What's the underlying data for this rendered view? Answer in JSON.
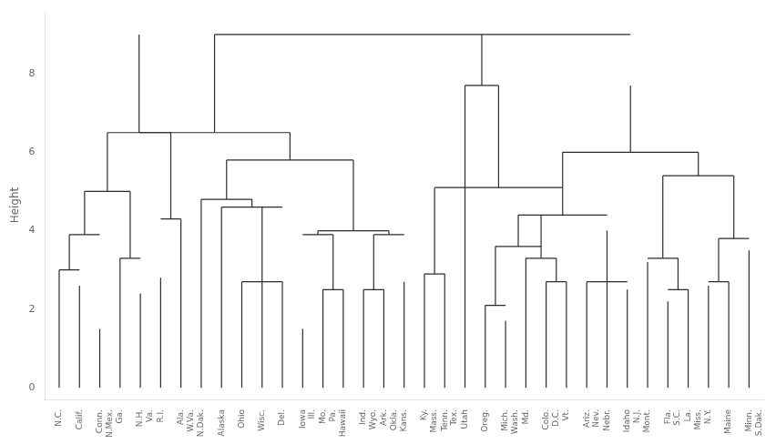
{
  "chart_data": {
    "type": "dendrogram",
    "ylabel": "Height",
    "ylim": [
      -0.3,
      9.6
    ],
    "yticks": [
      0,
      2,
      4,
      6,
      8
    ],
    "grid": false,
    "color": "#2b2b2b",
    "categories": [
      "N.C.",
      "Calif.",
      "Conn.\nN.Mex.",
      "Ga.",
      "N.H.\nVa.",
      "R.I.",
      "Ala.\nW.Va.",
      "N.Dak.",
      "Alaska",
      "Ohio",
      "Wisc.",
      "Del.",
      "Iowa\nIll.",
      "Mo.\nPa.",
      "Hawaii",
      "Ind.\nWyo.",
      "Ark.\nOkla.",
      "Kans.",
      "Ky.\nMass.",
      "Tenn.\nTex.",
      "Utah",
      "Oreg.",
      "Mich.\nWash.",
      "Md.",
      "Colo.\nD.C.",
      "Vt.",
      "Ariz.\nNev.",
      "Nebr.",
      "Idaho\nN.J.",
      "Mont.",
      "Fla.\nS.C.",
      "La.\nMiss.",
      "N.Y.",
      "Maine",
      "Minn.\nS.Dak."
    ],
    "segments": [
      [
        0,
        0,
        0,
        3.0
      ],
      [
        1,
        1,
        0,
        2.6
      ],
      [
        0,
        1,
        3.0,
        3.0
      ],
      [
        0.5,
        0.5,
        3.0,
        3.9
      ],
      [
        2,
        2,
        0,
        1.5
      ],
      [
        0.5,
        2,
        3.9,
        3.9
      ],
      [
        1.25,
        1.25,
        3.9,
        5.0
      ],
      [
        3,
        3,
        0,
        3.3
      ],
      [
        4,
        4,
        0,
        2.4
      ],
      [
        3,
        4,
        3.3,
        3.3
      ],
      [
        3.5,
        3.5,
        3.3,
        5.0
      ],
      [
        1.25,
        3.5,
        5.0,
        5.0
      ],
      [
        2.375,
        2.375,
        5.0,
        6.5
      ],
      [
        5,
        5,
        0,
        2.8
      ],
      [
        6,
        6,
        0,
        4.3
      ],
      [
        5,
        6,
        4.3,
        4.3
      ],
      [
        5.5,
        5.5,
        4.3,
        6.5
      ],
      [
        2.375,
        5.5,
        6.5,
        6.5
      ],
      [
        3.9375,
        3.9375,
        6.5,
        9.0
      ],
      [
        7,
        7,
        0,
        4.8
      ],
      [
        8,
        8,
        0,
        4.6
      ],
      [
        9,
        9,
        0,
        2.7
      ],
      [
        10,
        10,
        0,
        2.7
      ],
      [
        11,
        11,
        0,
        2.7
      ],
      [
        9,
        11,
        2.7,
        2.7
      ],
      [
        10,
        10,
        2.7,
        4.6
      ],
      [
        8,
        11,
        4.6,
        4.6
      ],
      [
        9.5,
        9.5,
        4.6,
        4.8
      ],
      [
        7,
        9.5,
        4.8,
        4.8
      ],
      [
        8.25,
        8.25,
        4.8,
        5.8
      ],
      [
        12,
        12,
        0,
        1.5
      ],
      [
        13,
        13,
        0,
        2.5
      ],
      [
        14,
        14,
        0,
        2.5
      ],
      [
        13,
        14,
        2.5,
        2.5
      ],
      [
        13.5,
        13.5,
        2.5,
        3.9
      ],
      [
        12,
        13.5,
        3.9,
        3.9
      ],
      [
        12.75,
        12.75,
        3.9,
        4.0
      ],
      [
        15,
        15,
        0,
        2.5
      ],
      [
        16,
        16,
        0,
        2.5
      ],
      [
        15,
        16,
        2.5,
        2.5
      ],
      [
        15.5,
        15.5,
        2.5,
        3.9
      ],
      [
        17,
        17,
        0,
        2.7
      ],
      [
        15.5,
        17,
        3.9,
        3.9
      ],
      [
        16.25,
        16.25,
        3.9,
        4.0
      ],
      [
        12.75,
        16.25,
        4.0,
        4.0
      ],
      [
        14.5,
        14.5,
        4.0,
        5.8
      ],
      [
        8.25,
        14.5,
        5.8,
        5.8
      ],
      [
        11.375,
        11.375,
        5.8,
        6.5
      ],
      [
        3.9375,
        11.375,
        6.5,
        6.5
      ],
      [
        7.65625,
        7.65625,
        6.5,
        9.0
      ],
      [
        18,
        18,
        0,
        2.9
      ],
      [
        19,
        19,
        0,
        2.9
      ],
      [
        18,
        19,
        2.9,
        2.9
      ],
      [
        18.5,
        18.5,
        2.9,
        5.1
      ],
      [
        20,
        20,
        0,
        7.7
      ],
      [
        21,
        21,
        0,
        2.1
      ],
      [
        22,
        22,
        0,
        1.7
      ],
      [
        21,
        22,
        2.1,
        2.1
      ],
      [
        21.5,
        21.5,
        2.1,
        3.6
      ],
      [
        23,
        23,
        0,
        3.3
      ],
      [
        24,
        24,
        0,
        2.7
      ],
      [
        25,
        25,
        0,
        2.7
      ],
      [
        24,
        25,
        2.7,
        2.7
      ],
      [
        24.5,
        24.5,
        2.7,
        3.3
      ],
      [
        23,
        24.5,
        3.3,
        3.3
      ],
      [
        23.75,
        23.75,
        3.3,
        4.4
      ],
      [
        21.5,
        23.75,
        3.6,
        3.6
      ],
      [
        22.625,
        22.625,
        3.6,
        4.4
      ],
      [
        26,
        26,
        0,
        2.7
      ],
      [
        27,
        27,
        0,
        2.7
      ],
      [
        28,
        28,
        0,
        2.5
      ],
      [
        26,
        28,
        2.7,
        2.7
      ],
      [
        27,
        27,
        2.7,
        4.0
      ],
      [
        22.625,
        27,
        4.4,
        4.4
      ],
      [
        24.8125,
        24.8125,
        4.4,
        6.0
      ],
      [
        18.5,
        24.8125,
        5.1,
        5.1
      ],
      [
        21.65625,
        21.65625,
        5.1,
        7.7
      ],
      [
        20,
        21.65625,
        7.7,
        7.7
      ],
      [
        20.828125,
        20.828125,
        7.7,
        9.0
      ],
      [
        29,
        29,
        0,
        3.2
      ],
      [
        30,
        30,
        0,
        2.2
      ],
      [
        31,
        31,
        0,
        2.5
      ],
      [
        30,
        31,
        2.5,
        2.5
      ],
      [
        30.5,
        30.5,
        2.5,
        3.3
      ],
      [
        29,
        30.5,
        3.3,
        3.3
      ],
      [
        29.75,
        29.75,
        3.3,
        5.4
      ],
      [
        32,
        32,
        0,
        2.6
      ],
      [
        33,
        33,
        0,
        2.7
      ],
      [
        32,
        33,
        2.7,
        2.7
      ],
      [
        32.5,
        32.5,
        2.7,
        3.8
      ],
      [
        34,
        34,
        0,
        3.5
      ],
      [
        32.5,
        34,
        3.8,
        3.8
      ],
      [
        33.25,
        33.25,
        3.8,
        5.4
      ],
      [
        29.75,
        33.25,
        5.4,
        5.4
      ],
      [
        31.5,
        31.5,
        5.4,
        6.0
      ],
      [
        24.8125,
        31.5,
        6.0,
        6.0
      ],
      [
        28.15625,
        28.15625,
        6.0,
        7.7
      ],
      [
        20.828125,
        28.15625,
        9.0,
        9.0
      ],
      [
        7.65625,
        20.828125,
        9.0,
        9.0
      ]
    ]
  }
}
